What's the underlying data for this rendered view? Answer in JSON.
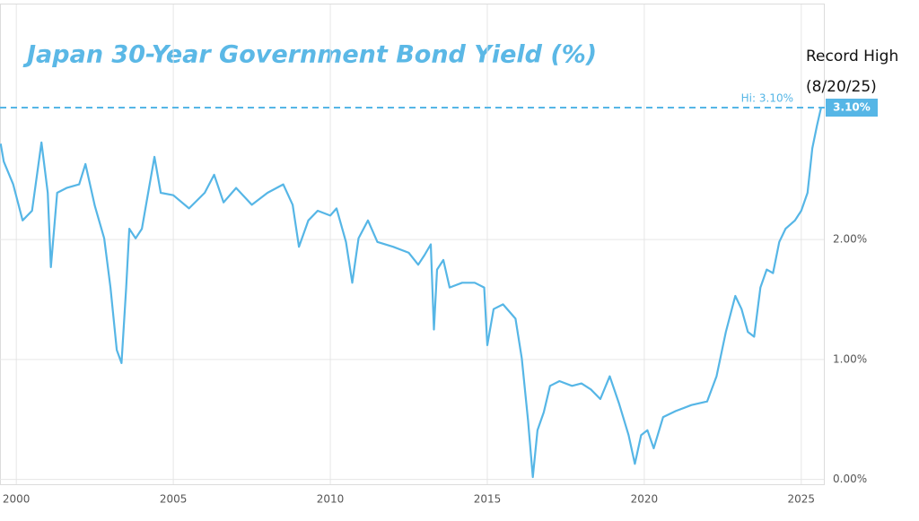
{
  "chart_data": {
    "type": "line",
    "title": "Japan 30-Year Government Bond Yield (%)",
    "annotation_lines": [
      "Record High",
      "(8/20/25)"
    ],
    "hi_value": 3.1,
    "hi_label": "Hi: 3.10%",
    "hi_badge": "3.10%",
    "color": "#56b6e6",
    "x": [
      1999.5,
      1999.6,
      1999.9,
      2000.2,
      2000.5,
      2000.8,
      2001.0,
      2001.1,
      2001.3,
      2001.6,
      2002.0,
      2002.2,
      2002.5,
      2002.8,
      2003.0,
      2003.2,
      2003.35,
      2003.5,
      2003.6,
      2003.8,
      2004.0,
      2004.2,
      2004.4,
      2004.6,
      2005.0,
      2005.5,
      2006.0,
      2006.3,
      2006.6,
      2007.0,
      2007.5,
      2008.0,
      2008.5,
      2008.8,
      2009.0,
      2009.3,
      2009.6,
      2010.0,
      2010.2,
      2010.5,
      2010.7,
      2010.9,
      2011.2,
      2011.5,
      2012.0,
      2012.5,
      2012.8,
      2013.0,
      2013.2,
      2013.3,
      2013.4,
      2013.6,
      2013.8,
      2014.2,
      2014.6,
      2014.9,
      2015.0,
      2015.2,
      2015.5,
      2015.9,
      2016.1,
      2016.3,
      2016.45,
      2016.6,
      2016.8,
      2017.0,
      2017.3,
      2017.7,
      2018.0,
      2018.3,
      2018.6,
      2018.9,
      2019.2,
      2019.5,
      2019.7,
      2019.9,
      2020.1,
      2020.3,
      2020.6,
      2021.0,
      2021.5,
      2022.0,
      2022.3,
      2022.6,
      2022.9,
      2023.1,
      2023.3,
      2023.5,
      2023.7,
      2023.9,
      2024.1,
      2024.3,
      2024.5,
      2024.8,
      2025.0,
      2025.2,
      2025.35,
      2025.5,
      2025.63
    ],
    "values": [
      2.8,
      2.65,
      2.46,
      2.16,
      2.24,
      2.81,
      2.39,
      1.77,
      2.39,
      2.43,
      2.46,
      2.63,
      2.28,
      2.01,
      1.6,
      1.08,
      0.97,
      1.6,
      2.09,
      2.01,
      2.09,
      2.39,
      2.69,
      2.39,
      2.37,
      2.26,
      2.39,
      2.54,
      2.31,
      2.43,
      2.29,
      2.39,
      2.46,
      2.29,
      1.94,
      2.16,
      2.24,
      2.2,
      2.26,
      1.98,
      1.64,
      2.01,
      2.16,
      1.98,
      1.94,
      1.89,
      1.79,
      1.87,
      1.96,
      1.25,
      1.75,
      1.83,
      1.6,
      1.64,
      1.64,
      1.6,
      1.12,
      1.42,
      1.46,
      1.34,
      1.01,
      0.49,
      0.02,
      0.41,
      0.56,
      0.78,
      0.82,
      0.78,
      0.8,
      0.75,
      0.67,
      0.86,
      0.63,
      0.37,
      0.13,
      0.37,
      0.41,
      0.26,
      0.52,
      0.57,
      0.62,
      0.65,
      0.86,
      1.23,
      1.53,
      1.42,
      1.23,
      1.19,
      1.6,
      1.75,
      1.72,
      1.98,
      2.09,
      2.16,
      2.24,
      2.39,
      2.76,
      2.95,
      3.1
    ],
    "xlim": [
      1999.48,
      2025.72
    ],
    "xticks": [
      2000,
      2005,
      2010,
      2015,
      2020,
      2025
    ],
    "ylim": [
      -0.04,
      3.96
    ],
    "yticks": [
      {
        "value": 0,
        "label": "0.00%"
      },
      {
        "value": 1,
        "label": "1.00%"
      },
      {
        "value": 2,
        "label": "2.00%"
      }
    ],
    "grid": true
  }
}
